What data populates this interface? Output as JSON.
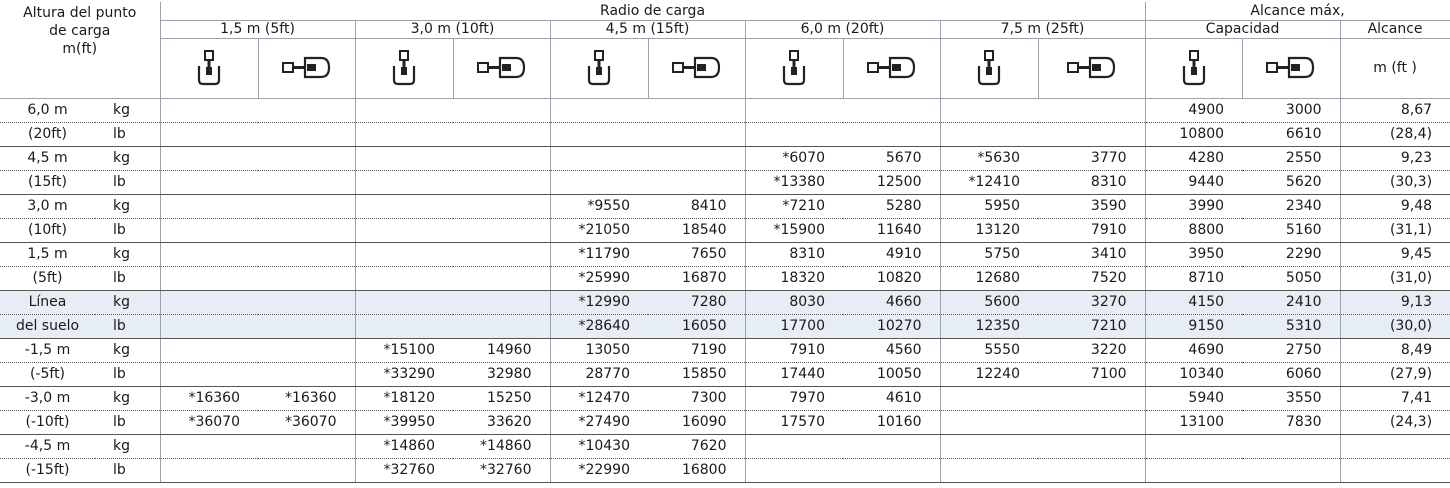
{
  "table": {
    "height_header": [
      "Altura del punto",
      "de carga",
      "m(ft)"
    ],
    "radius_header": "Radio de carga",
    "radii": [
      "1,5 m (5ft)",
      "3,0 m (10ft)",
      "4,5 m (15ft)",
      "6,0 m (20ft)",
      "7,5 m (25ft)"
    ],
    "max_header": "Alcance máx,",
    "capacity": "Capacidad",
    "reach": "Alcance",
    "reach_unit": "m (ft )",
    "rows": [
      [
        "6,0 m",
        "kg",
        null,
        null,
        null,
        null,
        null,
        null,
        null,
        null,
        null,
        null,
        "4900",
        "3000",
        "8,67"
      ],
      [
        "(20ft)",
        "lb",
        null,
        null,
        null,
        null,
        null,
        null,
        null,
        null,
        null,
        null,
        "10800",
        "6610",
        "(28,4)"
      ],
      [
        "4,5 m",
        "kg",
        null,
        null,
        null,
        null,
        null,
        null,
        "*6070",
        "5670",
        "*5630",
        "3770",
        "4280",
        "2550",
        "9,23"
      ],
      [
        "(15ft)",
        "lb",
        null,
        null,
        null,
        null,
        null,
        null,
        "*13380",
        "12500",
        "*12410",
        "8310",
        "9440",
        "5620",
        "(30,3)"
      ],
      [
        "3,0 m",
        "kg",
        null,
        null,
        null,
        null,
        "*9550",
        "8410",
        "*7210",
        "5280",
        "5950",
        "3590",
        "3990",
        "2340",
        "9,48"
      ],
      [
        "(10ft)",
        "lb",
        null,
        null,
        null,
        null,
        "*21050",
        "18540",
        "*15900",
        "11640",
        "13120",
        "7910",
        "8800",
        "5160",
        "(31,1)"
      ],
      [
        "1,5 m",
        "kg",
        null,
        null,
        null,
        null,
        "*11790",
        "7650",
        "8310",
        "4910",
        "5750",
        "3410",
        "3950",
        "2290",
        "9,45"
      ],
      [
        "(5ft)",
        "lb",
        null,
        null,
        null,
        null,
        "*25990",
        "16870",
        "18320",
        "10820",
        "12680",
        "7520",
        "8710",
        "5050",
        "(31,0)"
      ],
      [
        "Línea",
        "kg",
        null,
        null,
        null,
        null,
        "*12990",
        "7280",
        "8030",
        "4660",
        "5600",
        "3270",
        "4150",
        "2410",
        "9,13"
      ],
      [
        "del suelo",
        "lb",
        null,
        null,
        null,
        null,
        "*28640",
        "16050",
        "17700",
        "10270",
        "12350",
        "7210",
        "9150",
        "5310",
        "(30,0)"
      ],
      [
        "-1,5 m",
        "kg",
        null,
        null,
        "*15100",
        "14960",
        "13050",
        "7190",
        "7910",
        "4560",
        "5550",
        "3220",
        "4690",
        "2750",
        "8,49"
      ],
      [
        "(-5ft)",
        "lb",
        null,
        null,
        "*33290",
        "32980",
        "28770",
        "15850",
        "17440",
        "10050",
        "12240",
        "7100",
        "10340",
        "6060",
        "(27,9)"
      ],
      [
        "-3,0 m",
        "kg",
        "*16360",
        "*16360",
        "*18120",
        "15250",
        "*12470",
        "7300",
        "7970",
        "4610",
        null,
        null,
        "5940",
        "3550",
        "7,41"
      ],
      [
        "(-10ft)",
        "lb",
        "*36070",
        "*36070",
        "*39950",
        "33620",
        "*27490",
        "16090",
        "17570",
        "10160",
        null,
        null,
        "13100",
        "7830",
        "(24,3)"
      ],
      [
        "-4,5 m",
        "kg",
        null,
        null,
        "*14860",
        "*14860",
        "*10430",
        "7620",
        null,
        null,
        null,
        null,
        null,
        null,
        null
      ],
      [
        "(-15ft)",
        "lb",
        null,
        null,
        "*32760",
        "*32760",
        "*22990",
        "16800",
        null,
        null,
        null,
        null,
        null,
        null,
        null
      ]
    ]
  }
}
